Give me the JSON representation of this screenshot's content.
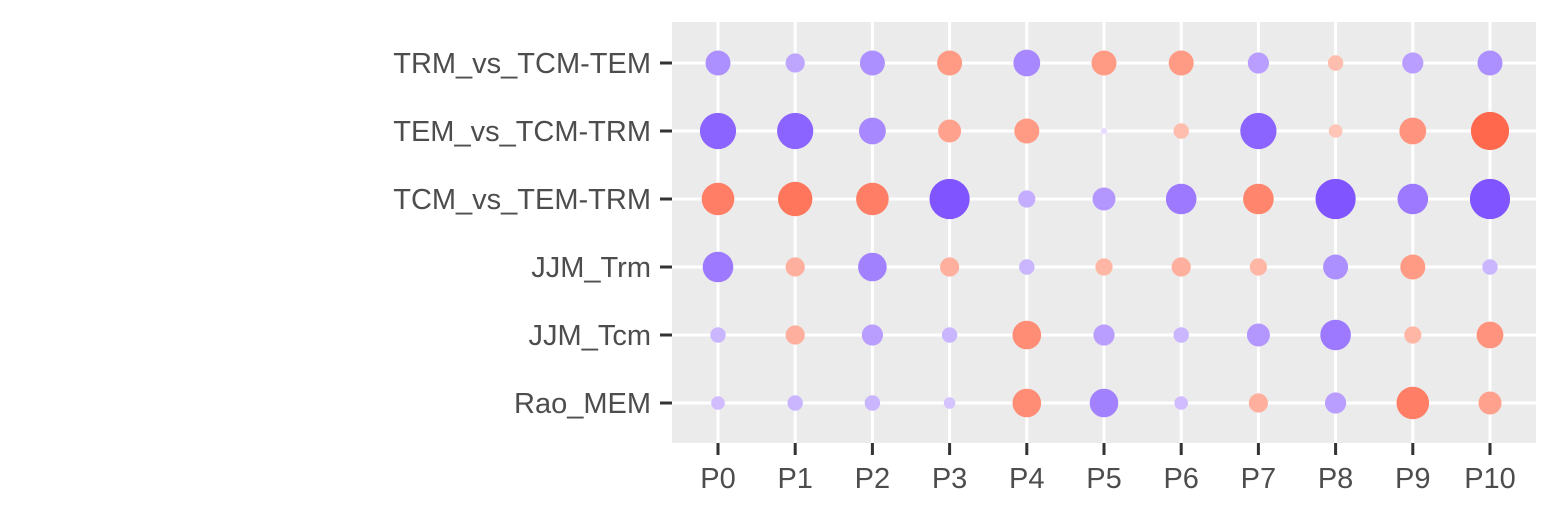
{
  "chart_data": {
    "type": "scatter",
    "subtype": "dot-matrix",
    "title": "",
    "xlabel": "",
    "ylabel": "",
    "x_categories": [
      "P0",
      "P1",
      "P2",
      "P3",
      "P4",
      "P5",
      "P6",
      "P7",
      "P8",
      "P9",
      "P10"
    ],
    "y_categories": [
      "TRM_vs_TCM-TEM",
      "TEM_vs_TCM-TRM",
      "TCM_vs_TEM-TRM",
      "JJM_Trm",
      "JJM_Tcm",
      "Rao_MEM"
    ],
    "grid": true,
    "legend": "none",
    "colors": {
      "panel_background": "#ebebeb",
      "grid": "#ffffff",
      "negative_extreme": "#7a4dff",
      "positive_extreme": "#ff5a3c",
      "axis_text": "#4d4d4d",
      "tick": "#333333"
    },
    "value_note_range": [
      -1,
      1
    ],
    "values": [
      [
        -0.55,
        -0.4,
        -0.55,
        0.55,
        -0.6,
        0.55,
        0.55,
        -0.45,
        0.3,
        -0.45,
        -0.55
      ],
      [
        -0.85,
        -0.85,
        -0.6,
        0.5,
        0.55,
        -0.05,
        0.3,
        -0.85,
        0.25,
        0.6,
        0.9
      ],
      [
        0.75,
        0.8,
        0.75,
        -0.95,
        -0.35,
        -0.5,
        -0.7,
        0.7,
        -0.95,
        -0.7,
        -0.95
      ],
      [
        -0.7,
        0.4,
        -0.65,
        0.4,
        -0.3,
        0.35,
        0.4,
        0.35,
        -0.55,
        0.55,
        -0.3
      ],
      [
        -0.3,
        0.4,
        -0.45,
        -0.3,
        0.65,
        -0.45,
        -0.3,
        -0.5,
        -0.7,
        0.35,
        0.6
      ],
      [
        -0.25,
        -0.3,
        -0.3,
        -0.2,
        0.65,
        -0.65,
        -0.25,
        0.4,
        -0.45,
        0.75,
        0.5
      ]
    ]
  }
}
